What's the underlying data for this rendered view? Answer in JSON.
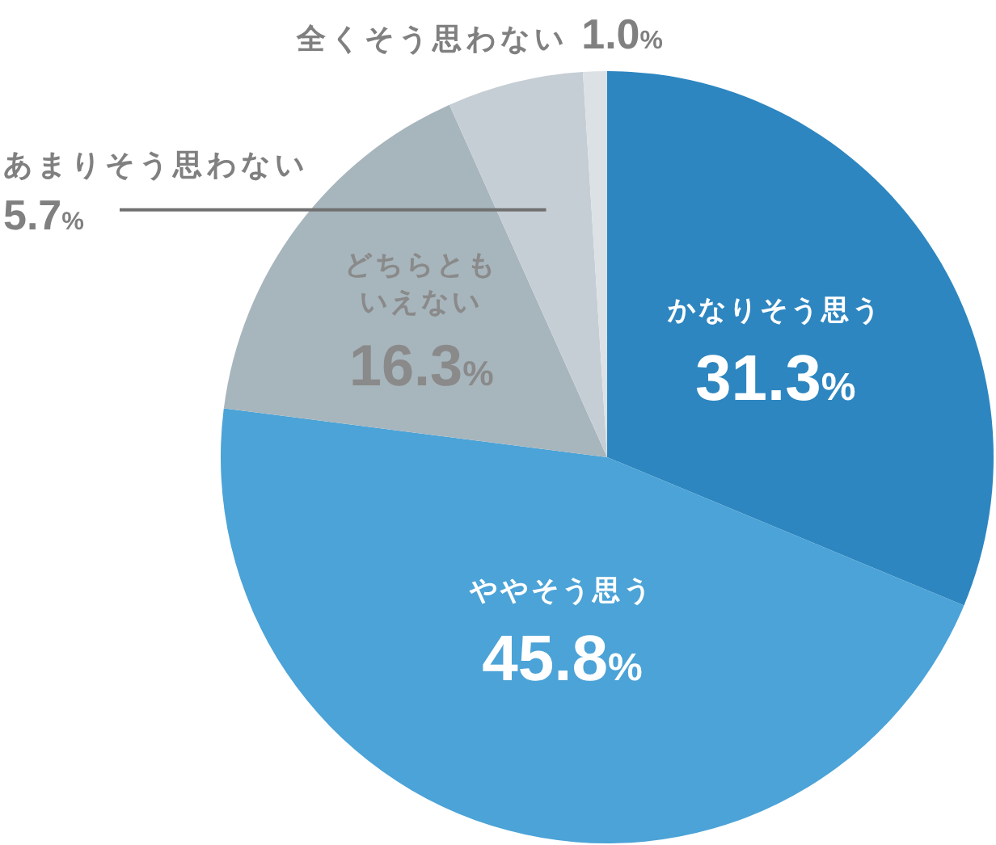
{
  "chart_data": {
    "type": "pie",
    "categories": [
      "かなりそう思う",
      "ややそう思う",
      "どちらともいえない",
      "あまりそう思わない",
      "全くそう思わない"
    ],
    "values": [
      31.3,
      45.8,
      16.3,
      5.7,
      1.0
    ],
    "colors": [
      "#2d86c0",
      "#4ba3d7",
      "#a7b5bc",
      "#c6ced5",
      "#dce1e5"
    ],
    "value_labels": [
      "31.3%",
      "45.8%",
      "16.3%",
      "5.7%",
      "1.0%"
    ]
  }
}
